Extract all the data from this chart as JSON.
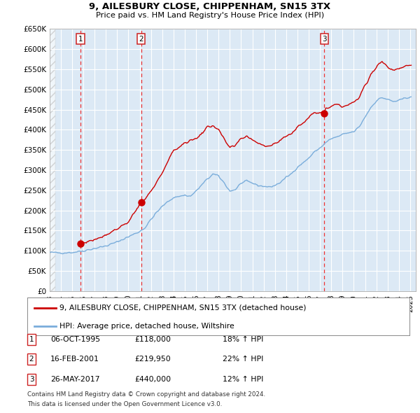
{
  "title": "9, AILESBURY CLOSE, CHIPPENHAM, SN15 3TX",
  "subtitle": "Price paid vs. HM Land Registry's House Price Index (HPI)",
  "legend_line1": "9, AILESBURY CLOSE, CHIPPENHAM, SN15 3TX (detached house)",
  "legend_line2": "HPI: Average price, detached house, Wiltshire",
  "footnote1": "Contains HM Land Registry data © Crown copyright and database right 2024.",
  "footnote2": "This data is licensed under the Open Government Licence v3.0.",
  "transactions": [
    {
      "num": 1,
      "date": "06-OCT-1995",
      "price": "£118,000",
      "change": "18% ↑ HPI"
    },
    {
      "num": 2,
      "date": "16-FEB-2001",
      "price": "£219,950",
      "change": "22% ↑ HPI"
    },
    {
      "num": 3,
      "date": "26-MAY-2017",
      "price": "£440,000",
      "change": "12% ↑ HPI"
    }
  ],
  "transaction_years": [
    1995.76,
    2001.12,
    2017.39
  ],
  "transaction_prices": [
    118000,
    219950,
    440000
  ],
  "hpi_color": "#7aaddb",
  "price_color": "#cc0000",
  "vline_color": "#ee3333",
  "plot_bg": "#dce9f5",
  "ylim": [
    0,
    650000
  ],
  "xlim_start": 1993.0,
  "xlim_end": 2025.5,
  "yticks": [
    0,
    50000,
    100000,
    150000,
    200000,
    250000,
    300000,
    350000,
    400000,
    450000,
    500000,
    550000,
    600000,
    650000
  ],
  "ytick_labels": [
    "£0",
    "£50K",
    "£100K",
    "£150K",
    "£200K",
    "£250K",
    "£300K",
    "£350K",
    "£400K",
    "£450K",
    "£500K",
    "£550K",
    "£600K",
    "£650K"
  ]
}
